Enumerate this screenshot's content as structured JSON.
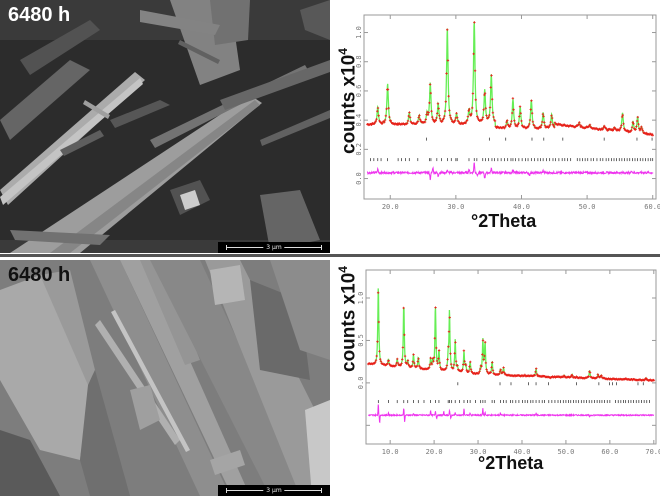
{
  "panels": [
    {
      "sem_image": {
        "label": "6480 h",
        "scale_bar": "3 µm"
      },
      "chart": {
        "ylabel_main": "counts x10",
        "ylabel_exp": "4",
        "xlabel": "°2Theta"
      }
    },
    {
      "sem_image": {
        "label": "6480 h",
        "scale_bar": "3 µm"
      },
      "chart": {
        "ylabel_main": "counts x10",
        "ylabel_exp": "4",
        "xlabel": "°2Theta"
      }
    }
  ],
  "colors": {
    "observed": "#e8201a",
    "calculated": "#66ee55",
    "difference": "#ee33ee",
    "reflection_ticks": "#222222",
    "axis": "#999999"
  },
  "chart_data": [
    {
      "type": "line",
      "title": "",
      "xlabel": "°2Theta",
      "ylabel": "counts x10^4",
      "xlim": [
        16,
        60.5
      ],
      "ylim": [
        -0.14,
        1.12
      ],
      "x_ticks": [
        "20.0",
        "30.0",
        "40.0",
        "50.0",
        "60.0"
      ],
      "y_ticks": [
        "0.0",
        "0.2",
        "0.4",
        "0.6",
        "0.8",
        "1.0"
      ],
      "grid": false,
      "background": 0.37,
      "background_end": 0.3,
      "peaks": [
        {
          "x": 18.1,
          "y": 0.49
        },
        {
          "x": 19.6,
          "y": 0.65
        },
        {
          "x": 22.9,
          "y": 0.45
        },
        {
          "x": 24.4,
          "y": 0.43
        },
        {
          "x": 25.6,
          "y": 0.44
        },
        {
          "x": 26.1,
          "y": 0.65
        },
        {
          "x": 27.3,
          "y": 0.51
        },
        {
          "x": 28.7,
          "y": 1.03
        },
        {
          "x": 30.1,
          "y": 0.44
        },
        {
          "x": 32.0,
          "y": 0.46
        },
        {
          "x": 32.8,
          "y": 1.08
        },
        {
          "x": 34.4,
          "y": 0.6
        },
        {
          "x": 35.4,
          "y": 0.71
        },
        {
          "x": 37.8,
          "y": 0.39
        },
        {
          "x": 38.7,
          "y": 0.54
        },
        {
          "x": 39.8,
          "y": 0.49
        },
        {
          "x": 41.5,
          "y": 0.54
        },
        {
          "x": 43.3,
          "y": 0.45
        },
        {
          "x": 44.6,
          "y": 0.44
        },
        {
          "x": 45.4,
          "y": 0.37
        },
        {
          "x": 48.8,
          "y": 0.38
        },
        {
          "x": 50.4,
          "y": 0.37
        },
        {
          "x": 52.6,
          "y": 0.36
        },
        {
          "x": 54.2,
          "y": 0.35
        },
        {
          "x": 55.4,
          "y": 0.45
        },
        {
          "x": 57.0,
          "y": 0.39
        },
        {
          "x": 57.7,
          "y": 0.42
        },
        {
          "x": 58.3,
          "y": 0.35
        }
      ],
      "phase2_ticks_y": 0.27,
      "phase2_ticks": [
        25.5,
        35.1,
        37.6,
        41.6,
        43.4,
        46.3,
        52.6,
        57.6,
        59.9
      ],
      "phase1_ticks_y": 0.13,
      "phase1_ticks": [
        17.0,
        17.5,
        18.1,
        18.6,
        19.6,
        21.2,
        21.7,
        22.3,
        22.9,
        24.2,
        26.0,
        26.2,
        27.1,
        27.8,
        28.7,
        29.3,
        30.0,
        30.2,
        32.0,
        32.8,
        33.2,
        34.1,
        34.5,
        35.0,
        35.5,
        35.9,
        36.4,
        36.9,
        37.4,
        37.9,
        38.4,
        38.7,
        39.1,
        39.6,
        40.1,
        40.6,
        41.0,
        41.5,
        42.0,
        42.5,
        42.9,
        43.3,
        43.8,
        44.3,
        44.8,
        45.2,
        45.7,
        46.2,
        46.6,
        47.0,
        47.5,
        48.5,
        48.9,
        49.3,
        49.7,
        50.1,
        50.6,
        51.0,
        51.5,
        52.0,
        52.4,
        52.9,
        53.3,
        53.7,
        54.1,
        54.5,
        54.9,
        55.3,
        55.7,
        56.1,
        56.5,
        56.9,
        57.3,
        57.7,
        58.1,
        58.5,
        58.9,
        59.3,
        59.7,
        60.0
      ],
      "difference_offset": 0.04,
      "difference_spikes": [
        {
          "x": 18.1,
          "dy": 0.025
        },
        {
          "x": 26.1,
          "dy": -0.045
        },
        {
          "x": 26.5,
          "dy": 0.035
        },
        {
          "x": 27.3,
          "dy": -0.025
        },
        {
          "x": 28.7,
          "dy": 0.02
        },
        {
          "x": 32.0,
          "dy": 0.025
        },
        {
          "x": 32.8,
          "dy": 0.07
        },
        {
          "x": 33.3,
          "dy": -0.02
        },
        {
          "x": 34.4,
          "dy": -0.04
        },
        {
          "x": 35.4,
          "dy": 0.03
        },
        {
          "x": 38.7,
          "dy": 0.02
        },
        {
          "x": 41.2,
          "dy": -0.025
        },
        {
          "x": 43.3,
          "dy": 0.015
        },
        {
          "x": 56.8,
          "dy": 0.015
        }
      ],
      "series": [
        {
          "name": "Observed",
          "style": "red crosses"
        },
        {
          "name": "Calculated",
          "style": "green line"
        },
        {
          "name": "Difference",
          "style": "magenta line"
        },
        {
          "name": "Reflection positions",
          "style": "black ticks (2 phases)"
        }
      ]
    },
    {
      "type": "line",
      "title": "",
      "xlabel": "°2Theta",
      "ylabel": "counts x10^4",
      "xlim": [
        4.5,
        70.5
      ],
      "ylim": [
        -0.72,
        1.33
      ],
      "x_ticks": [
        "10.0",
        "20.0",
        "30.0",
        "40.0",
        "50.0",
        "60.0",
        "70.0"
      ],
      "y_ticks": [
        "-0.5",
        "0.0",
        "0.5",
        "1.0"
      ],
      "y_tick_labels_visible": [
        "0.0",
        "0.5",
        "1.0"
      ],
      "grid": false,
      "background_start": 0.22,
      "background_mid": 0.1,
      "background_end": 0.03,
      "peaks": [
        {
          "x": 7.3,
          "y": 1.15
        },
        {
          "x": 9.6,
          "y": 0.28
        },
        {
          "x": 11.6,
          "y": 0.28
        },
        {
          "x": 13.1,
          "y": 0.93
        },
        {
          "x": 14.0,
          "y": 0.25
        },
        {
          "x": 15.3,
          "y": 0.33
        },
        {
          "x": 16.4,
          "y": 0.3
        },
        {
          "x": 19.2,
          "y": 0.28
        },
        {
          "x": 19.7,
          "y": 0.24
        },
        {
          "x": 20.3,
          "y": 0.91
        },
        {
          "x": 21.1,
          "y": 0.37
        },
        {
          "x": 23.2,
          "y": 0.29
        },
        {
          "x": 23.5,
          "y": 0.84
        },
        {
          "x": 24.8,
          "y": 0.5
        },
        {
          "x": 25.3,
          "y": 0.18
        },
        {
          "x": 26.8,
          "y": 0.37
        },
        {
          "x": 27.2,
          "y": 0.2
        },
        {
          "x": 28.2,
          "y": 0.25
        },
        {
          "x": 30.6,
          "y": 0.17
        },
        {
          "x": 31.1,
          "y": 0.5
        },
        {
          "x": 31.6,
          "y": 0.46
        },
        {
          "x": 33.2,
          "y": 0.25
        },
        {
          "x": 35.1,
          "y": 0.16
        },
        {
          "x": 35.8,
          "y": 0.18
        },
        {
          "x": 37.4,
          "y": 0.08
        },
        {
          "x": 40.7,
          "y": 0.09
        },
        {
          "x": 43.2,
          "y": 0.17
        },
        {
          "x": 46.5,
          "y": 0.06
        },
        {
          "x": 48.3,
          "y": 0.07
        },
        {
          "x": 49.6,
          "y": 0.09
        },
        {
          "x": 51.4,
          "y": 0.1
        },
        {
          "x": 52.5,
          "y": 0.07
        },
        {
          "x": 55.4,
          "y": 0.15
        },
        {
          "x": 57.3,
          "y": 0.1
        },
        {
          "x": 58.0,
          "y": 0.09
        },
        {
          "x": 63.5,
          "y": 0.05
        },
        {
          "x": 68.2,
          "y": 0.06
        }
      ],
      "phase2_ticks_y": -0.01,
      "phase2_ticks": [
        25.4,
        35.0,
        37.5,
        41.5,
        43.2,
        46.0,
        52.4,
        57.5,
        59.9,
        60.6,
        61.5,
        66.4,
        67.6
      ],
      "phase1_ticks_y": -0.22,
      "phase1_ticks": [
        7.3,
        9.6,
        11.6,
        13.1,
        14.0,
        15.3,
        16.4,
        17.7,
        19.2,
        20.3,
        21.1,
        23.2,
        23.5,
        24.0,
        24.8,
        25.8,
        26.8,
        27.6,
        28.2,
        29.4,
        30.6,
        31.1,
        31.6,
        33.2,
        33.7,
        35.1,
        35.8,
        36.4,
        37.4,
        37.9,
        38.6,
        39.3,
        40.1,
        40.7,
        41.3,
        42.0,
        42.5,
        43.2,
        43.9,
        44.6,
        45.1,
        46.1,
        46.8,
        47.5,
        48.2,
        48.8,
        49.4,
        50.0,
        50.6,
        51.1,
        51.7,
        52.3,
        52.9,
        53.5,
        54.1,
        54.7,
        55.3,
        55.9,
        56.5,
        57.1,
        57.7,
        58.2,
        58.8,
        59.4,
        60.0,
        61.3,
        61.9,
        62.5,
        63.1,
        63.6,
        64.2,
        64.8,
        65.4,
        66.0,
        66.6,
        67.2,
        67.8,
        68.4,
        69.0
      ],
      "difference_offset": -0.38,
      "difference_spikes": [
        {
          "x": 7.3,
          "dy": 0.14
        },
        {
          "x": 7.6,
          "dy": -0.1
        },
        {
          "x": 9.6,
          "dy": 0.03
        },
        {
          "x": 13.1,
          "dy": 0.09
        },
        {
          "x": 13.3,
          "dy": -0.09
        },
        {
          "x": 15.3,
          "dy": 0.025
        },
        {
          "x": 19.2,
          "dy": 0.06
        },
        {
          "x": 20.3,
          "dy": 0.05
        },
        {
          "x": 20.6,
          "dy": -0.04
        },
        {
          "x": 22.2,
          "dy": 0.04
        },
        {
          "x": 23.5,
          "dy": 0.06
        },
        {
          "x": 23.8,
          "dy": -0.04
        },
        {
          "x": 24.8,
          "dy": 0.03
        },
        {
          "x": 26.8,
          "dy": 0.08
        },
        {
          "x": 28.2,
          "dy": 0.03
        },
        {
          "x": 31.1,
          "dy": 0.09
        },
        {
          "x": 31.6,
          "dy": 0.03
        },
        {
          "x": 35.1,
          "dy": 0.03
        },
        {
          "x": 43.2,
          "dy": 0.025
        },
        {
          "x": 55.4,
          "dy": -0.02
        }
      ],
      "series": [
        {
          "name": "Observed",
          "style": "red crosses"
        },
        {
          "name": "Calculated",
          "style": "green line"
        },
        {
          "name": "Difference",
          "style": "magenta line"
        },
        {
          "name": "Reflection positions",
          "style": "black ticks (2 phases)"
        }
      ]
    }
  ]
}
